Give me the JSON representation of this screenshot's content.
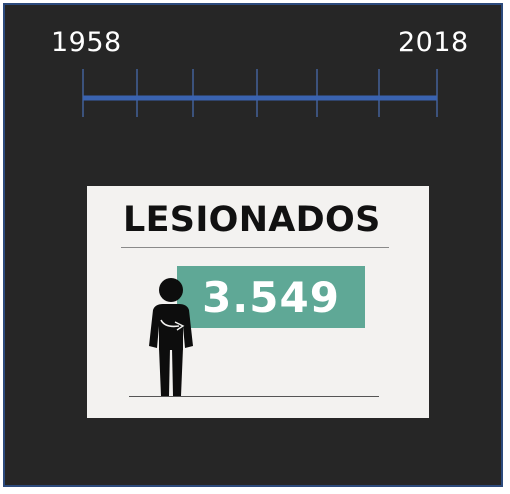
{
  "timeline": {
    "start_year": "1958",
    "end_year": "2018",
    "line_color": "#3a63b0",
    "tick_color": "#4a6fb5"
  },
  "card": {
    "title": "LESIONADOS",
    "value": "3.549",
    "accent_color": "#5fa896",
    "icon": "person-standing-icon"
  },
  "frame": {
    "background": "#262626",
    "border_color": "#2c4a7c"
  }
}
